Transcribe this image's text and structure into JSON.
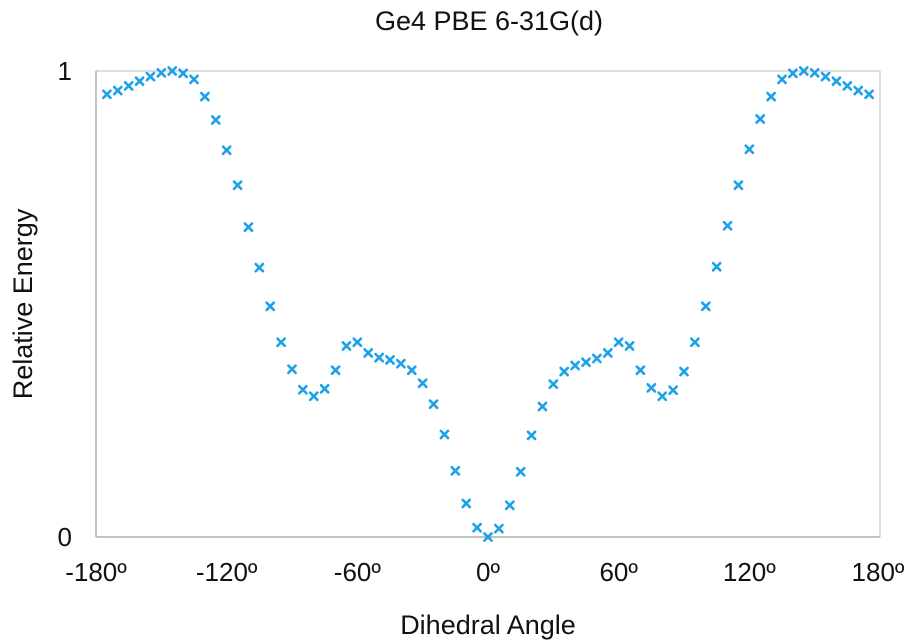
{
  "colors": {
    "marker": "#1da1e8",
    "frame": "#bdbdbd",
    "text": "#111111"
  },
  "chart_data": {
    "type": "scatter",
    "title": "Ge4 PBE 6-31G(d)",
    "xlabel": "Dihedral Angle",
    "ylabel": "Relative Energy",
    "xlim": [
      -180,
      180
    ],
    "ylim": [
      0,
      1
    ],
    "x_ticks": [
      "-180º",
      "-120º",
      "-60º",
      "0º",
      "60º",
      "120º",
      "180º"
    ],
    "y_ticks": [
      "0",
      "1"
    ],
    "x_tick_values": [
      -180,
      -120,
      -60,
      0,
      60,
      120,
      180
    ],
    "y_tick_values": [
      0,
      1
    ],
    "grid": false,
    "legend": "none",
    "marker": "x",
    "series": [
      {
        "x": [
          -175,
          -170,
          -165,
          -160,
          -155,
          -150,
          -145,
          -140,
          -135,
          -130,
          -125,
          -120,
          -115,
          -110,
          -105,
          -100,
          -95,
          -90,
          -85,
          -80,
          -75,
          -70,
          -65,
          -60,
          -55,
          -50,
          -45,
          -40,
          -35,
          -30,
          -25,
          -20,
          -15,
          -10,
          -5,
          0,
          5,
          10,
          15,
          20,
          25,
          30,
          35,
          40,
          45,
          50,
          55,
          60,
          65,
          70,
          75,
          80,
          85,
          90,
          95,
          100,
          105,
          110,
          115,
          120,
          125,
          130,
          135,
          140,
          145,
          150,
          155,
          160,
          165,
          170,
          175
        ],
        "y": [
          0.95,
          0.958,
          0.968,
          0.978,
          0.988,
          0.996,
          1.0,
          0.995,
          0.982,
          0.945,
          0.895,
          0.83,
          0.755,
          0.665,
          0.578,
          0.495,
          0.418,
          0.36,
          0.316,
          0.302,
          0.318,
          0.358,
          0.41,
          0.418,
          0.395,
          0.385,
          0.38,
          0.372,
          0.358,
          0.33,
          0.285,
          0.22,
          0.142,
          0.072,
          0.02,
          0.0,
          0.018,
          0.068,
          0.14,
          0.218,
          0.28,
          0.328,
          0.355,
          0.368,
          0.375,
          0.383,
          0.395,
          0.418,
          0.41,
          0.358,
          0.32,
          0.302,
          0.315,
          0.355,
          0.418,
          0.495,
          0.58,
          0.668,
          0.755,
          0.832,
          0.897,
          0.945,
          0.982,
          0.995,
          1.0,
          0.996,
          0.988,
          0.978,
          0.968,
          0.958,
          0.95
        ]
      }
    ]
  }
}
